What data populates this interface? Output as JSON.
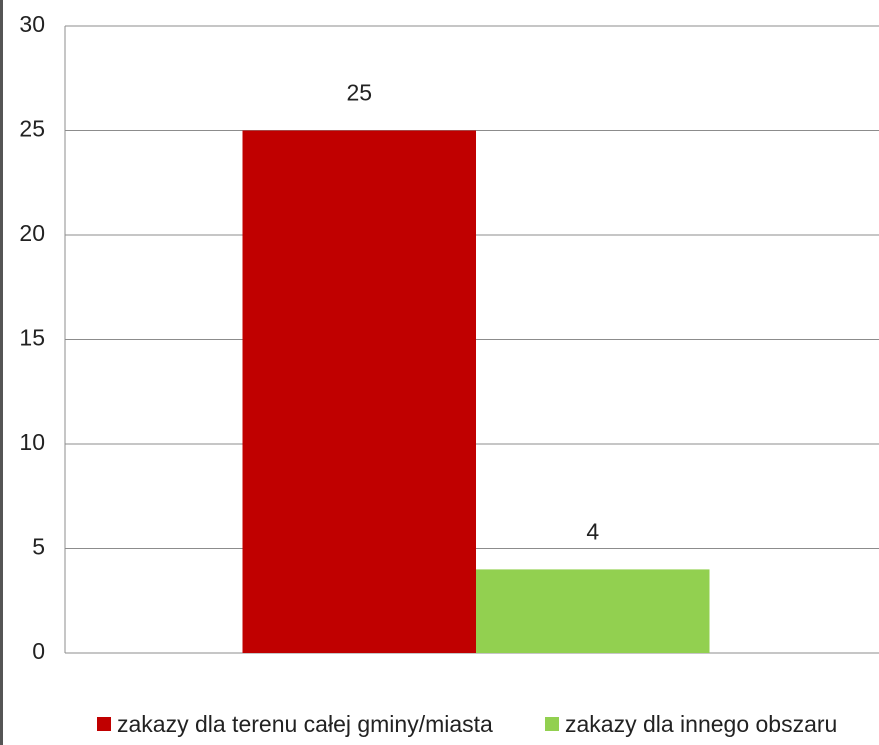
{
  "chart_data": {
    "type": "bar",
    "categories": [
      null
    ],
    "series": [
      {
        "name": "zakazy dla terenu całej gminy/miasta",
        "color": "#c00000",
        "values": [
          25
        ]
      },
      {
        "name": "zakazy dla innego obszaru",
        "color": "#92d050",
        "values": [
          4
        ]
      }
    ],
    "ylim": [
      0,
      30
    ],
    "yticks": [
      0,
      5,
      10,
      15,
      20,
      25,
      30
    ],
    "grid": true,
    "legend": "bottom",
    "data_labels": true
  }
}
